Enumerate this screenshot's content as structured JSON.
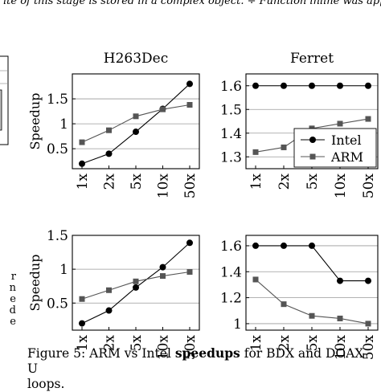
{
  "top_text": "ite of this stage is stored in a complex object. ÷ Function inline was applied in this",
  "margin_letters": [
    "r",
    "n",
    "e",
    "d",
    "e"
  ],
  "caption": {
    "prefix": "Figure 5: ARM vs Intel ",
    "bold": "speedups",
    "suffix": " for BDX and DOAX-U",
    "line2": "loops."
  },
  "chart_data": [
    {
      "type": "line",
      "title": "H263Dec",
      "ylabel": "Speedup",
      "categories": [
        "1x",
        "2x",
        "5x",
        "10x",
        "50x"
      ],
      "ylim": [
        0.1,
        2.0
      ],
      "yticks": [
        "0.5",
        "1",
        "1.5"
      ],
      "ytick_values": [
        0.5,
        1,
        1.5
      ],
      "series": [
        {
          "name": "Intel",
          "color": "#000000",
          "marker": "circle",
          "values": [
            0.2,
            0.4,
            0.84,
            1.3,
            1.8
          ]
        },
        {
          "name": "ARM",
          "color": "#555555",
          "marker": "square",
          "values": [
            0.63,
            0.87,
            1.15,
            1.29,
            1.38
          ]
        }
      ],
      "grid": "horizontal",
      "legend": "none"
    },
    {
      "type": "line",
      "title": "Ferret",
      "ylabel": "",
      "categories": [
        "1x",
        "2x",
        "5x",
        "10x",
        "50x"
      ],
      "ylim": [
        1.25,
        1.65
      ],
      "yticks": [
        "1.3",
        "1.4",
        "1.5",
        "1.6"
      ],
      "ytick_values": [
        1.3,
        1.4,
        1.5,
        1.6
      ],
      "series": [
        {
          "name": "Intel",
          "color": "#000000",
          "marker": "circle",
          "values": [
            1.6,
            1.6,
            1.6,
            1.6,
            1.6
          ]
        },
        {
          "name": "ARM",
          "color": "#555555",
          "marker": "square",
          "values": [
            1.32,
            1.34,
            1.42,
            1.44,
            1.46
          ]
        }
      ],
      "grid": "horizontal",
      "legend": "bottom-right"
    },
    {
      "type": "line",
      "title": "",
      "ylabel": "Speedup",
      "categories": [
        "1x",
        "2x",
        "5x",
        "10x",
        "50x"
      ],
      "ylim": [
        0.1,
        1.5
      ],
      "yticks": [
        "0.5",
        "1",
        "1.5"
      ],
      "ytick_values": [
        0.5,
        1,
        1.5
      ],
      "series": [
        {
          "name": "Intel",
          "color": "#000000",
          "marker": "circle",
          "values": [
            0.2,
            0.39,
            0.73,
            1.03,
            1.39
          ]
        },
        {
          "name": "ARM",
          "color": "#555555",
          "marker": "square",
          "values": [
            0.56,
            0.69,
            0.82,
            0.9,
            0.96
          ]
        }
      ],
      "grid": "horizontal",
      "legend": "none"
    },
    {
      "type": "line",
      "title": "",
      "ylabel": "",
      "categories": [
        "1x",
        "2x",
        "5x",
        "10x",
        "50x"
      ],
      "ylim": [
        0.95,
        1.68
      ],
      "yticks": [
        "1",
        "1.2",
        "1.4",
        "1.6"
      ],
      "ytick_values": [
        1.0,
        1.2,
        1.4,
        1.6
      ],
      "series": [
        {
          "name": "Intel",
          "color": "#000000",
          "marker": "circle",
          "values": [
            1.6,
            1.6,
            1.6,
            1.33,
            1.33
          ]
        },
        {
          "name": "ARM",
          "color": "#555555",
          "marker": "square",
          "values": [
            1.34,
            1.15,
            1.06,
            1.04,
            1.0
          ]
        }
      ],
      "grid": "horizontal",
      "legend": "none"
    }
  ]
}
